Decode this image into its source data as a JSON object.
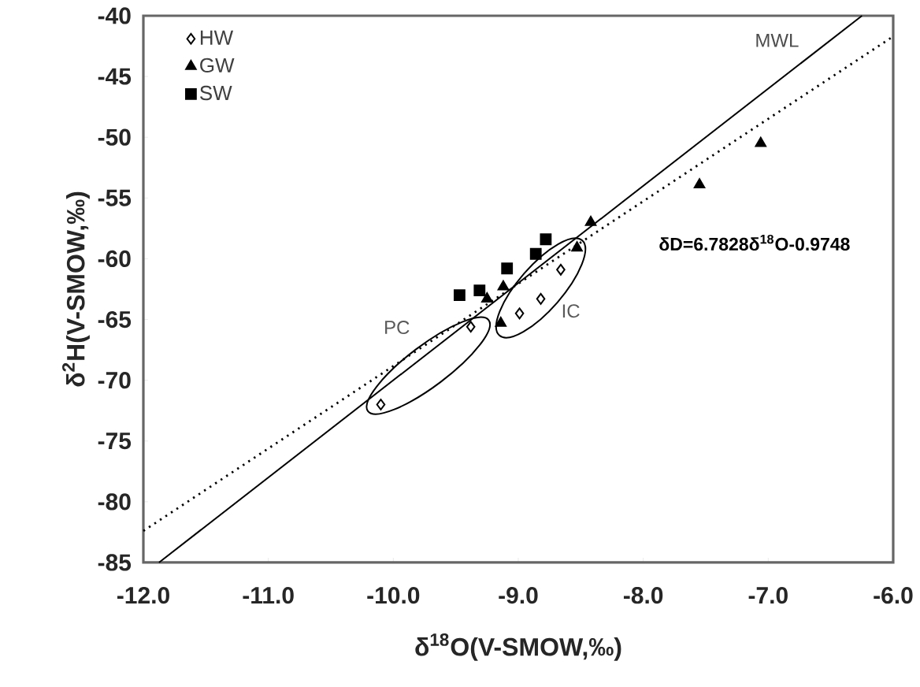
{
  "chart_data": {
    "type": "scatter",
    "xlabel": "δ$^{18}$O(V-SMOW,‰)",
    "ylabel": "δ$^{2}$H(V-SMOW,‰)",
    "xlim": [
      -12,
      -6
    ],
    "ylim": [
      -85,
      -40
    ],
    "xticks": [
      {
        "value": -12,
        "label": "-12.0"
      },
      {
        "value": -11,
        "label": "-11.0"
      },
      {
        "value": -10,
        "label": "-10.0"
      },
      {
        "value": -9,
        "label": "-9.0"
      },
      {
        "value": -8,
        "label": "-8.0"
      },
      {
        "value": -7,
        "label": "-7.0"
      },
      {
        "value": -6,
        "label": "-6.0"
      }
    ],
    "yticks": [
      -85,
      -80,
      -75,
      -70,
      -65,
      -60,
      -55,
      -50,
      -45,
      -40
    ],
    "legend": "top left",
    "series": [
      {
        "name": "HW",
        "marker": "diamond",
        "color": "#000000",
        "x": [
          -10.1,
          -9.38,
          -8.99,
          -8.82,
          -8.66
        ],
        "values": [
          -72.0,
          -65.6,
          -64.5,
          -63.3,
          -60.9
        ]
      },
      {
        "name": "GW",
        "marker": "triangle",
        "color": "#000000",
        "x": [
          -9.25,
          -9.14,
          -9.12,
          -8.53,
          -8.42,
          -7.55,
          -7.06
        ],
        "values": [
          -63.3,
          -65.3,
          -62.3,
          -59.1,
          -57.0,
          -53.9,
          -50.5
        ]
      },
      {
        "name": "SW",
        "marker": "square",
        "color": "#000000",
        "x": [
          -9.47,
          -9.31,
          -9.09,
          -8.86,
          -8.78
        ],
        "values": [
          -63.0,
          -62.6,
          -60.8,
          -59.6,
          -58.4
        ]
      },
      {
        "type": "line",
        "line_style": "solid",
        "color": "#000000",
        "x": [
          -11.875,
          -6.25
        ],
        "values": [
          -85,
          -40
        ]
      },
      {
        "type": "line",
        "line_style": "dotted",
        "color": "#000000",
        "x": [
          -12,
          -6
        ],
        "values": [
          -82.4,
          -41.7
        ]
      }
    ],
    "annotations": [
      "MWL",
      "δD=6.7828δ$^{18}$O-0.9748",
      "PC",
      "IC"
    ]
  }
}
